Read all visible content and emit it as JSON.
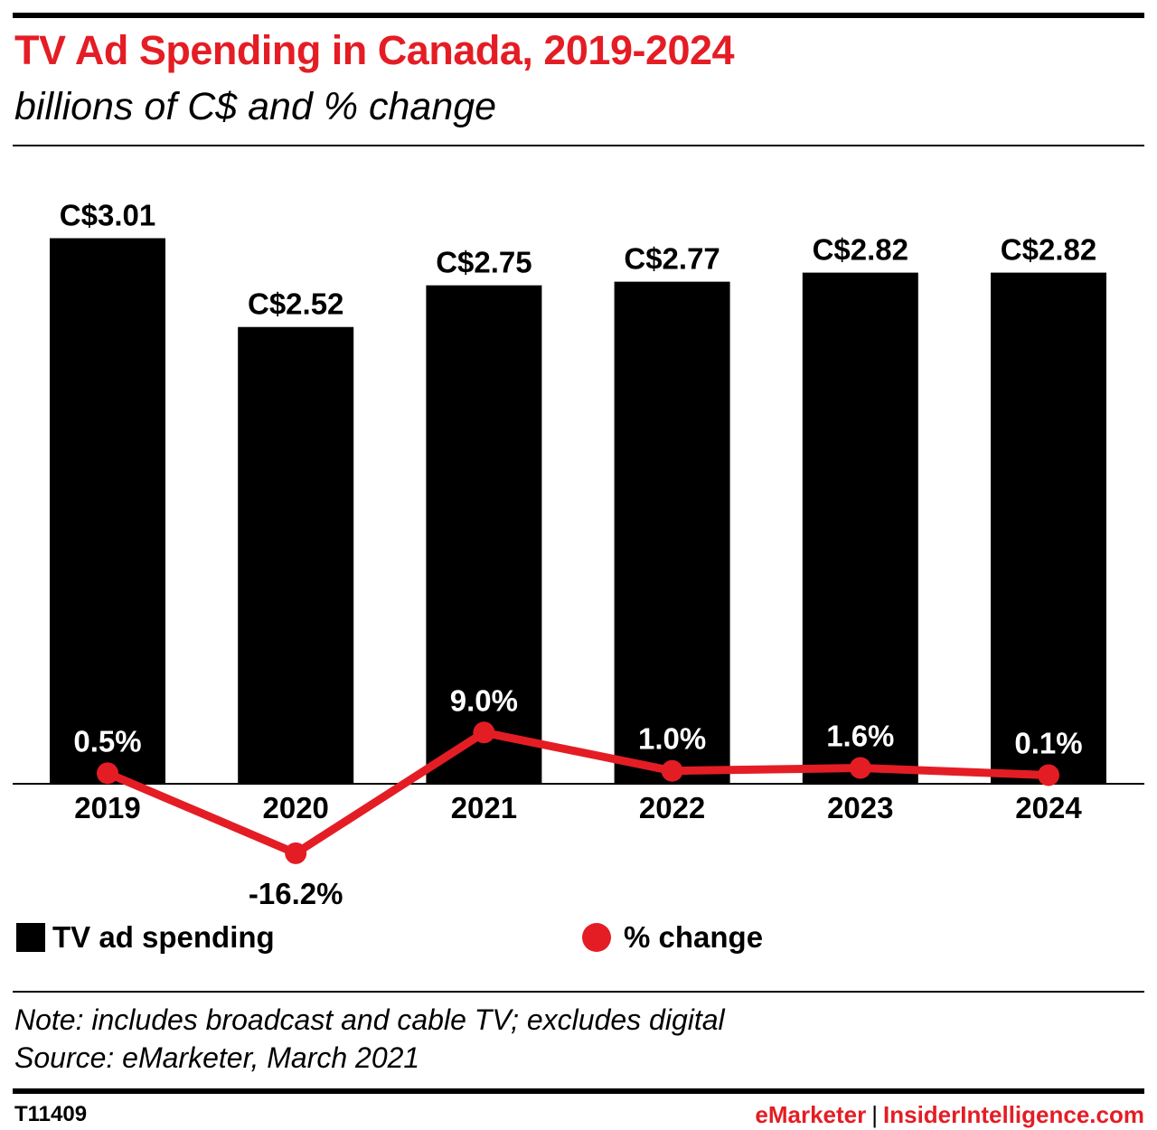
{
  "header": {
    "title": "TV Ad Spending in Canada, 2019-2024",
    "subtitle": "billions of C$ and % change"
  },
  "colors": {
    "accent": "#e41d25",
    "bar": "#000000"
  },
  "chart_data": {
    "type": "bar",
    "categories": [
      "2019",
      "2020",
      "2021",
      "2022",
      "2023",
      "2024"
    ],
    "series": [
      {
        "name": "TV ad spending",
        "type": "bar",
        "values": [
          3.01,
          2.52,
          2.75,
          2.77,
          2.82,
          2.82
        ],
        "labels": [
          "C$3.01",
          "C$2.52",
          "C$2.75",
          "C$2.77",
          "C$2.82",
          "C$2.82"
        ]
      },
      {
        "name": "% change",
        "type": "line",
        "values": [
          0.5,
          -16.2,
          9.0,
          1.0,
          1.6,
          0.1
        ],
        "labels": [
          "0.5%",
          "-16.2%",
          "9.0%",
          "1.0%",
          "1.6%",
          "0.1%"
        ]
      }
    ],
    "legend": [
      "TV ad spending",
      "% change"
    ],
    "legend_position": "bottom"
  },
  "footer": {
    "note": "Note: includes broadcast and cable TV; excludes digital",
    "source": "Source: eMarketer, March 2021",
    "chart_id": "T11409",
    "brand_left": "eMarketer",
    "brand_sep": "|",
    "brand_right": "InsiderIntelligence.com"
  }
}
